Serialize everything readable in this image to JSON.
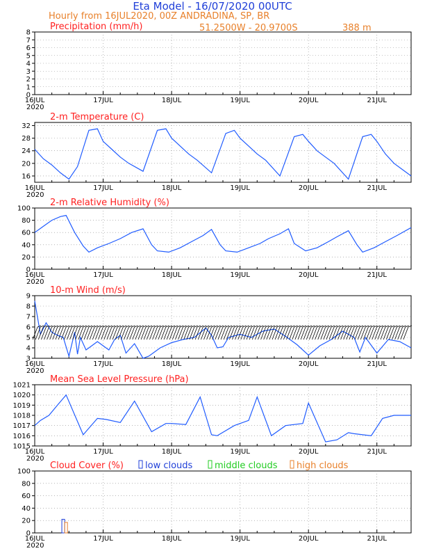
{
  "header": {
    "title": "Eta Model - 16/07/2020 00UTC",
    "subtitle": "Hourly from 16JUL2020, 00Z  ANDRADINA, SP, BR",
    "coords": "51.2500W - 20.9700S",
    "elevation": "388  m",
    "colors": {
      "title": "#1f3fd8",
      "subtitle": "#e8802a",
      "panel_title": "#ff2020",
      "line": "#1f5bff"
    }
  },
  "x_axis": {
    "labels": [
      "16JUL",
      "17JUL",
      "18JUL",
      "19JUL",
      "20JUL",
      "21JUL"
    ],
    "year": "2020",
    "hours_total": 132
  },
  "legend": {
    "low": "low clouds",
    "middle": "middle clouds",
    "high": "high clouds",
    "colors": {
      "low": "#1f3fd8",
      "middle": "#22cc22",
      "high": "#e8802a"
    }
  },
  "chart_data": [
    {
      "id": "precip",
      "type": "line",
      "title": "Precipitation (mm/h)",
      "ylim": [
        0,
        8
      ],
      "yticks": [
        0,
        1,
        2,
        3,
        4,
        5,
        6,
        7,
        8
      ],
      "x_hours": [],
      "values": []
    },
    {
      "id": "temp",
      "type": "line",
      "title": "2-m Temperature (C)",
      "ylim": [
        14,
        33
      ],
      "yticks": [
        16,
        20,
        24,
        28,
        32
      ],
      "x_hours": [
        0,
        3,
        6,
        9,
        12,
        15,
        19,
        22,
        24,
        27,
        30,
        33,
        38,
        43,
        46,
        48,
        51,
        54,
        57,
        62,
        67,
        70,
        72,
        75,
        78,
        81,
        86,
        91,
        94,
        96,
        99,
        102,
        105,
        110,
        115,
        118,
        120,
        123,
        126,
        129,
        132
      ],
      "values": [
        24.5,
        21.5,
        19.5,
        17,
        15,
        19,
        30.5,
        31,
        27,
        24.5,
        22,
        20,
        17.5,
        30.5,
        31,
        28,
        25.5,
        23,
        21,
        17,
        29.5,
        30.5,
        28,
        25.5,
        23,
        21,
        16,
        28.5,
        29.2,
        27,
        24,
        22,
        20,
        15,
        28.5,
        29.2,
        27,
        23,
        20,
        18,
        16
      ]
    },
    {
      "id": "rh",
      "type": "line",
      "title": "2-m Relative Humidity (%)",
      "ylim": [
        0,
        100
      ],
      "yticks": [
        0,
        20,
        40,
        60,
        80,
        100
      ],
      "x_hours": [
        0,
        3,
        6,
        9,
        11,
        14,
        17,
        19,
        22,
        26,
        30,
        34,
        38,
        41,
        43,
        47,
        51,
        55,
        59,
        62,
        65,
        67,
        71,
        75,
        79,
        82,
        86,
        89,
        91,
        95,
        99,
        103,
        106,
        110,
        113,
        115,
        119,
        123,
        127,
        132
      ],
      "values": [
        60,
        70,
        80,
        86,
        88,
        60,
        38,
        28,
        35,
        42,
        50,
        60,
        66,
        40,
        30,
        28,
        35,
        45,
        55,
        65,
        40,
        30,
        28,
        35,
        42,
        50,
        58,
        66,
        42,
        30,
        35,
        45,
        53,
        63,
        40,
        28,
        35,
        45,
        55,
        68
      ]
    },
    {
      "id": "wind",
      "type": "line",
      "title": "10-m Wind (m/s)",
      "ylim": [
        3,
        9
      ],
      "yticks": [
        3,
        4,
        5,
        6,
        7,
        8,
        9
      ],
      "x_hours": [
        0,
        2,
        4,
        6,
        8,
        10,
        12,
        14,
        15,
        16,
        18,
        22,
        24,
        26,
        28,
        30,
        32,
        35,
        38,
        40,
        44,
        48,
        52,
        56,
        60,
        62,
        64,
        66,
        68,
        72,
        76,
        80,
        84,
        88,
        92,
        96,
        100,
        104,
        108,
        112,
        114,
        116,
        120,
        124,
        128,
        132
      ],
      "values": [
        8.5,
        5.3,
        6.4,
        5.5,
        5.2,
        5.0,
        3.2,
        5.5,
        3.4,
        5.0,
        3.8,
        4.6,
        4.2,
        3.8,
        4.8,
        5.2,
        3.5,
        4.4,
        3.0,
        3.2,
        4.0,
        4.5,
        4.8,
        5.0,
        5.9,
        5.2,
        4.0,
        4.1,
        5.0,
        5.3,
        5.0,
        5.6,
        5.8,
        5.1,
        4.3,
        3.3,
        4.2,
        4.8,
        5.6,
        5.0,
        3.6,
        5.0,
        3.5,
        4.8,
        4.6,
        4.0
      ]
    },
    {
      "id": "mslp",
      "type": "line",
      "title": "Mean Sea Level Pressure (hPa)",
      "ylim": [
        1015,
        1021
      ],
      "yticks": [
        1015,
        1016,
        1017,
        1018,
        1019,
        1020,
        1021
      ],
      "x_hours": [
        0,
        2,
        5,
        8,
        11,
        17,
        22,
        25,
        30,
        35,
        41,
        46,
        48,
        53,
        58,
        62,
        64,
        70,
        75,
        78,
        83,
        88,
        94,
        96,
        102,
        106,
        110,
        112,
        118,
        122,
        126,
        131,
        132
      ],
      "values": [
        1017,
        1017.5,
        1018,
        1019,
        1020,
        1016.1,
        1017.7,
        1017.6,
        1017.3,
        1019.4,
        1016.4,
        1017.2,
        1017.2,
        1017.1,
        1019.8,
        1016.1,
        1016,
        1017,
        1017.5,
        1019.8,
        1016,
        1017,
        1017.2,
        1019.2,
        1015.4,
        1015.6,
        1016.3,
        1016.2,
        1016,
        1017.7,
        1018.0,
        1018.0,
        1018.0
      ]
    },
    {
      "id": "cloud",
      "type": "bar",
      "title": "Cloud Cover (%)",
      "ylim": [
        0,
        100
      ],
      "yticks": [
        0,
        20,
        40,
        60,
        80,
        100
      ],
      "bars": [
        {
          "hour": 10,
          "layer": "low",
          "value": 22
        },
        {
          "hour": 11,
          "layer": "high",
          "value": 17
        }
      ]
    }
  ]
}
